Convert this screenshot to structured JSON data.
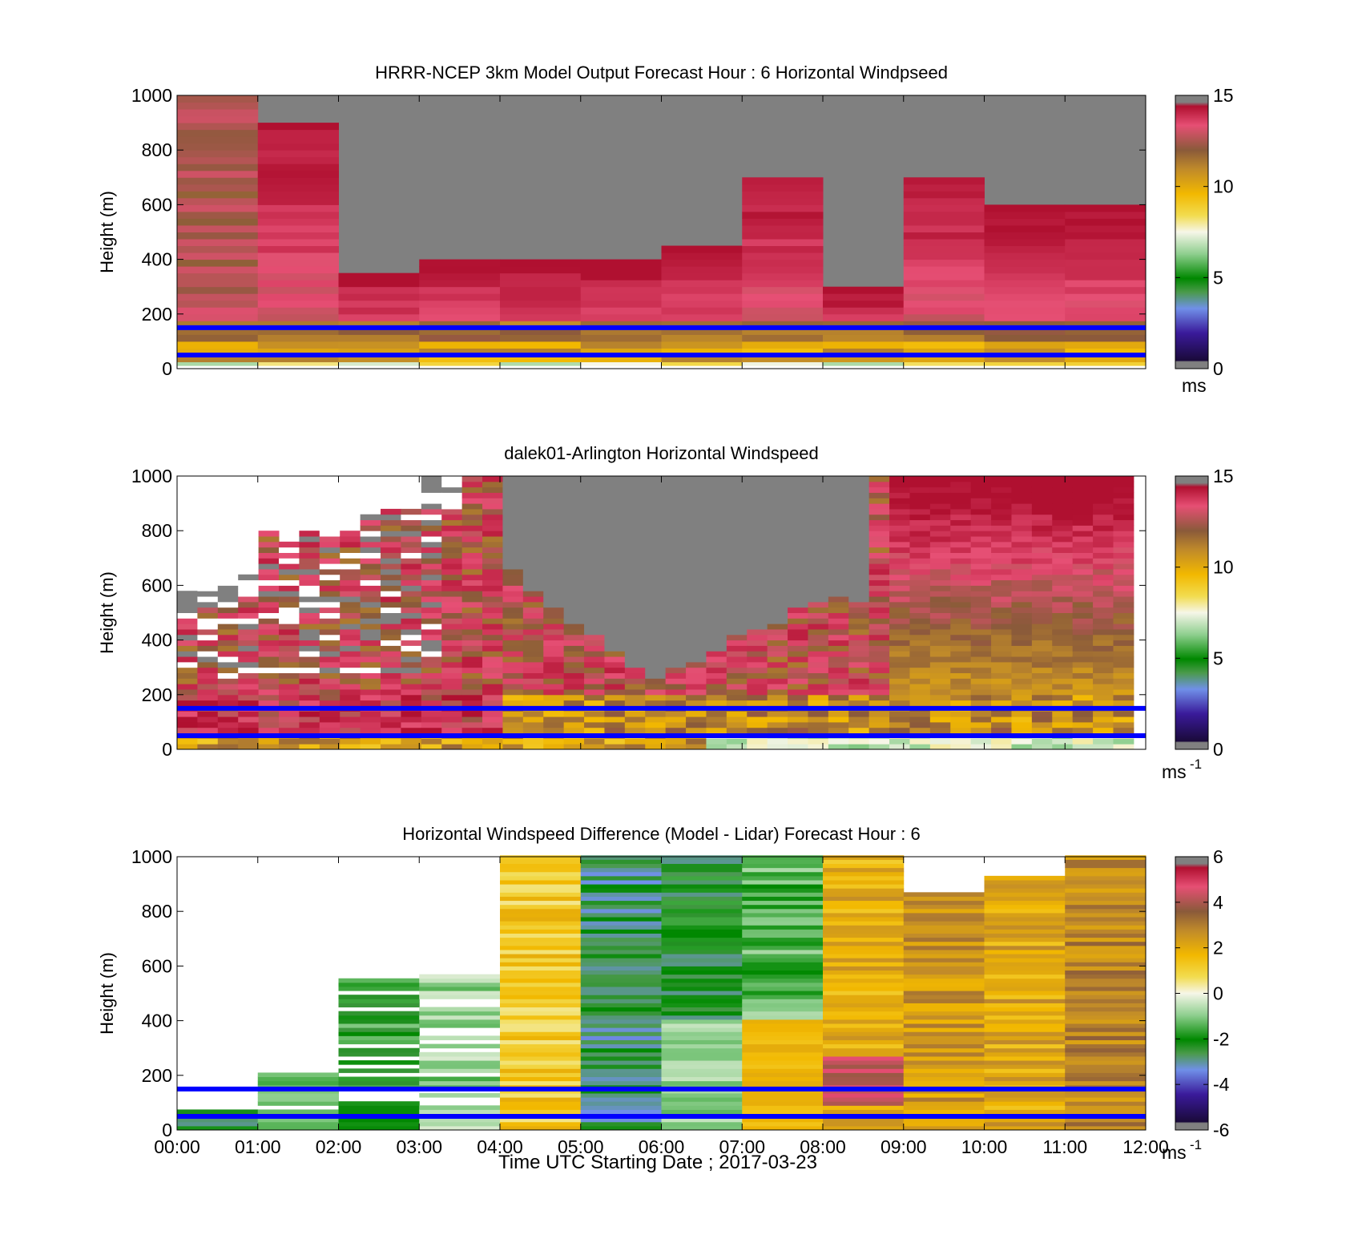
{
  "figure": {
    "xlabel": "Time UTC  Starting Date ; 2017-03-23"
  },
  "chart_data": [
    {
      "type": "heatmap",
      "title": "HRRR-NCEP 3km Model Output   Forecast Hour : 6 Horizontal Windpseed",
      "ylabel": "Height (m)",
      "xlim": [
        0,
        12
      ],
      "ylim": [
        0,
        1000
      ],
      "x_ticks": [
        "00:00",
        "01:00",
        "02:00",
        "03:00",
        "04:00",
        "05:00",
        "06:00",
        "07:00",
        "08:00",
        "09:00",
        "10:00",
        "11:00",
        "12:00"
      ],
      "y_ticks": [
        0,
        200,
        400,
        600,
        800,
        1000
      ],
      "colorbar": {
        "min": 0,
        "max": 15,
        "ticks": [
          0,
          5,
          10,
          15
        ],
        "unit": "ms",
        "unit_sup": ""
      },
      "columns_top_of_valid_data_m": [
        1000,
        900,
        350,
        400,
        400,
        400,
        450,
        700,
        300,
        700,
        600,
        600
      ],
      "reference_lines_m": [
        50,
        150
      ],
      "grid": false
    },
    {
      "type": "heatmap",
      "title": "dalek01-Arlington  Horizontal Windspeed",
      "ylabel": "Height (m)",
      "xlim": [
        0,
        12
      ],
      "ylim": [
        0,
        1000
      ],
      "x_ticks": [
        "00:00",
        "01:00",
        "02:00",
        "03:00",
        "04:00",
        "05:00",
        "06:00",
        "07:00",
        "08:00",
        "09:00",
        "10:00",
        "11:00",
        "12:00"
      ],
      "y_ticks": [
        0,
        200,
        400,
        600,
        800,
        1000
      ],
      "colorbar": {
        "min": 0,
        "max": 15,
        "ticks": [
          0,
          5,
          10,
          15
        ],
        "unit": "ms",
        "unit_sup": "-1"
      },
      "reference_lines_m": [
        50,
        150
      ],
      "grid": false
    },
    {
      "type": "heatmap",
      "title": "Horizontal Windspeed Difference (Model - Lidar) Forecast Hour : 6",
      "ylabel": "Height (m)",
      "xlim": [
        0,
        12
      ],
      "ylim": [
        0,
        1000
      ],
      "x_ticks": [
        "00:00",
        "01:00",
        "02:00",
        "03:00",
        "04:00",
        "05:00",
        "06:00",
        "07:00",
        "08:00",
        "09:00",
        "10:00",
        "11:00",
        "12:00"
      ],
      "y_ticks": [
        0,
        200,
        400,
        600,
        800,
        1000
      ],
      "colorbar": {
        "min": -6,
        "max": 6,
        "ticks": [
          -6,
          -4,
          -2,
          0,
          2,
          4,
          6
        ],
        "unit": "ms",
        "unit_sup": "-1"
      },
      "columns_top_of_valid_data_m": [
        80,
        200,
        550,
        570,
        1000,
        1000,
        1000,
        1000,
        1000,
        870,
        930,
        1000
      ],
      "reference_lines_m": [
        50,
        150
      ],
      "grid": false
    }
  ],
  "colors": {
    "reference_line": "#0000ff",
    "no_data": "#808080"
  }
}
